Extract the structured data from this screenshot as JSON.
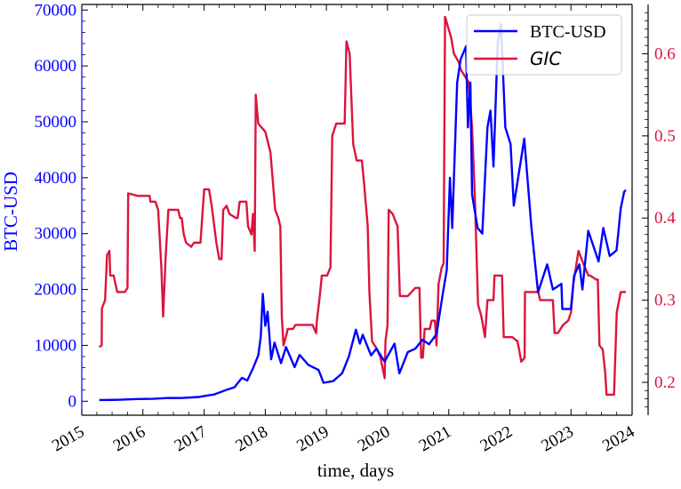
{
  "chart_data": {
    "type": "line",
    "xlabel": "time, days",
    "ylabel_left": "BTC-USD",
    "ylabel_right": "",
    "x_range": [
      "2015-01-01",
      "2024-01-01"
    ],
    "x_ticks": [
      "2015",
      "2016",
      "2017",
      "2018",
      "2019",
      "2020",
      "2021",
      "2022",
      "2023",
      "2024"
    ],
    "ylim_left": [
      -2500,
      71000
    ],
    "yticks_left": [
      "0",
      "10000",
      "20000",
      "30000",
      "40000",
      "50000",
      "60000",
      "70000"
    ],
    "ylim_right": [
      0.16,
      0.66
    ],
    "yticks_right": [
      "0.2",
      "0.3",
      "0.4",
      "0.5",
      "0.6"
    ],
    "legend_position": "upper-right",
    "grid": false,
    "colors": {
      "btc": "#0000ff",
      "gic": "#dc143c",
      "axis": "#000000"
    },
    "series": [
      {
        "name": "BTC-USD",
        "axis": "left",
        "points": [
          [
            "2015-04-15",
            220
          ],
          [
            "2015-08-01",
            260
          ],
          [
            "2015-12-01",
            390
          ],
          [
            "2016-03-01",
            420
          ],
          [
            "2016-06-01",
            590
          ],
          [
            "2016-08-15",
            570
          ],
          [
            "2016-12-01",
            760
          ],
          [
            "2017-01-05",
            950
          ],
          [
            "2017-03-01",
            1200
          ],
          [
            "2017-05-20",
            2100
          ],
          [
            "2017-07-01",
            2500
          ],
          [
            "2017-08-15",
            4200
          ],
          [
            "2017-09-15",
            3700
          ],
          [
            "2017-10-20",
            5900
          ],
          [
            "2017-11-20",
            8200
          ],
          [
            "2017-12-05",
            11500
          ],
          [
            "2017-12-17",
            19200
          ],
          [
            "2018-01-01",
            13500
          ],
          [
            "2018-01-15",
            16000
          ],
          [
            "2018-02-05",
            7500
          ],
          [
            "2018-02-25",
            10500
          ],
          [
            "2018-04-05",
            6800
          ],
          [
            "2018-05-05",
            9700
          ],
          [
            "2018-06-25",
            6100
          ],
          [
            "2018-07-25",
            8300
          ],
          [
            "2018-09-15",
            6500
          ],
          [
            "2018-11-15",
            5600
          ],
          [
            "2018-12-15",
            3300
          ],
          [
            "2019-02-10",
            3600
          ],
          [
            "2019-04-05",
            5000
          ],
          [
            "2019-05-15",
            8000
          ],
          [
            "2019-06-26",
            12800
          ],
          [
            "2019-07-20",
            10300
          ],
          [
            "2019-08-06",
            11900
          ],
          [
            "2019-09-25",
            8200
          ],
          [
            "2019-10-26",
            9400
          ],
          [
            "2019-12-15",
            7100
          ],
          [
            "2020-01-15",
            8800
          ],
          [
            "2020-02-12",
            10300
          ],
          [
            "2020-03-12",
            5000
          ],
          [
            "2020-05-01",
            8800
          ],
          [
            "2020-06-15",
            9400
          ],
          [
            "2020-07-28",
            11000
          ],
          [
            "2020-09-05",
            10200
          ],
          [
            "2020-10-20",
            12000
          ],
          [
            "2020-11-25",
            19000
          ],
          [
            "2020-12-20",
            23500
          ],
          [
            "2021-01-08",
            40000
          ],
          [
            "2021-01-22",
            31000
          ],
          [
            "2021-02-20",
            57000
          ],
          [
            "2021-03-13",
            61200
          ],
          [
            "2021-04-14",
            63500
          ],
          [
            "2021-04-25",
            49000
          ],
          [
            "2021-05-10",
            57000
          ],
          [
            "2021-05-20",
            37000
          ],
          [
            "2021-06-22",
            31000
          ],
          [
            "2021-07-20",
            30000
          ],
          [
            "2021-08-20",
            49000
          ],
          [
            "2021-09-07",
            52000
          ],
          [
            "2021-09-25",
            42000
          ],
          [
            "2021-10-20",
            64000
          ],
          [
            "2021-11-09",
            67500
          ],
          [
            "2021-12-05",
            49000
          ],
          [
            "2022-01-05",
            46000
          ],
          [
            "2022-01-24",
            35000
          ],
          [
            "2022-03-28",
            47000
          ],
          [
            "2022-05-10",
            31000
          ],
          [
            "2022-06-18",
            19500
          ],
          [
            "2022-08-12",
            24500
          ],
          [
            "2022-09-15",
            20000
          ],
          [
            "2022-11-05",
            21000
          ],
          [
            "2022-11-10",
            16500
          ],
          [
            "2022-12-31",
            16500
          ],
          [
            "2023-01-20",
            22500
          ],
          [
            "2023-02-20",
            24500
          ],
          [
            "2023-03-10",
            20000
          ],
          [
            "2023-04-14",
            30500
          ],
          [
            "2023-06-15",
            25000
          ],
          [
            "2023-07-13",
            31000
          ],
          [
            "2023-08-20",
            26000
          ],
          [
            "2023-09-30",
            27000
          ],
          [
            "2023-10-25",
            34500
          ],
          [
            "2023-11-15",
            37500
          ],
          [
            "2023-11-25",
            37800
          ]
        ]
      },
      {
        "name": "GIC",
        "axis": "right",
        "points": [
          [
            "2015-04-15",
            0.243
          ],
          [
            "2015-04-30",
            0.245
          ],
          [
            "2015-05-01",
            0.29
          ],
          [
            "2015-05-20",
            0.3
          ],
          [
            "2015-06-01",
            0.355
          ],
          [
            "2015-06-15",
            0.36
          ],
          [
            "2015-06-20",
            0.33
          ],
          [
            "2015-07-10",
            0.33
          ],
          [
            "2015-08-01",
            0.31
          ],
          [
            "2015-09-15",
            0.31
          ],
          [
            "2015-10-01",
            0.315
          ],
          [
            "2015-10-05",
            0.43
          ],
          [
            "2015-12-01",
            0.427
          ],
          [
            "2016-02-10",
            0.427
          ],
          [
            "2016-02-15",
            0.42
          ],
          [
            "2016-03-15",
            0.42
          ],
          [
            "2016-04-01",
            0.41
          ],
          [
            "2016-04-20",
            0.34
          ],
          [
            "2016-05-01",
            0.28
          ],
          [
            "2016-05-15",
            0.35
          ],
          [
            "2016-06-01",
            0.41
          ],
          [
            "2016-07-30",
            0.41
          ],
          [
            "2016-08-10",
            0.4
          ],
          [
            "2016-08-20",
            0.4
          ],
          [
            "2016-09-01",
            0.38
          ],
          [
            "2016-09-15",
            0.37
          ],
          [
            "2016-10-15",
            0.365
          ],
          [
            "2016-11-01",
            0.37
          ],
          [
            "2016-12-10",
            0.37
          ],
          [
            "2016-12-20",
            0.4
          ],
          [
            "2017-01-01",
            0.435
          ],
          [
            "2017-01-30",
            0.435
          ],
          [
            "2017-02-15",
            0.415
          ],
          [
            "2017-03-15",
            0.37
          ],
          [
            "2017-04-01",
            0.35
          ],
          [
            "2017-04-15",
            0.35
          ],
          [
            "2017-04-25",
            0.41
          ],
          [
            "2017-05-15",
            0.415
          ],
          [
            "2017-06-01",
            0.405
          ],
          [
            "2017-07-10",
            0.4
          ],
          [
            "2017-07-20",
            0.4
          ],
          [
            "2017-08-01",
            0.42
          ],
          [
            "2017-09-10",
            0.42
          ],
          [
            "2017-09-20",
            0.39
          ],
          [
            "2017-10-10",
            0.38
          ],
          [
            "2017-10-20",
            0.405
          ],
          [
            "2017-10-30",
            0.36
          ],
          [
            "2017-11-05",
            0.55
          ],
          [
            "2017-11-20",
            0.515
          ],
          [
            "2018-01-01",
            0.505
          ],
          [
            "2018-02-01",
            0.48
          ],
          [
            "2018-03-01",
            0.41
          ],
          [
            "2018-03-20",
            0.4
          ],
          [
            "2018-04-01",
            0.39
          ],
          [
            "2018-04-10",
            0.28
          ],
          [
            "2018-04-20",
            0.245
          ],
          [
            "2018-05-10",
            0.26
          ],
          [
            "2018-05-15",
            0.265
          ],
          [
            "2018-06-15",
            0.265
          ],
          [
            "2018-07-01",
            0.27
          ],
          [
            "2018-07-15",
            0.27
          ],
          [
            "2018-10-10",
            0.27
          ],
          [
            "2018-11-01",
            0.26
          ],
          [
            "2018-11-05",
            0.275
          ],
          [
            "2018-11-20",
            0.3
          ],
          [
            "2018-12-05",
            0.33
          ],
          [
            "2019-01-05",
            0.33
          ],
          [
            "2019-01-25",
            0.34
          ],
          [
            "2019-02-05",
            0.5
          ],
          [
            "2019-03-01",
            0.515
          ],
          [
            "2019-04-20",
            0.515
          ],
          [
            "2019-05-01",
            0.615
          ],
          [
            "2019-05-20",
            0.6
          ],
          [
            "2019-06-10",
            0.49
          ],
          [
            "2019-07-01",
            0.47
          ],
          [
            "2019-08-01",
            0.47
          ],
          [
            "2019-08-15",
            0.44
          ],
          [
            "2019-09-05",
            0.39
          ],
          [
            "2019-09-15",
            0.31
          ],
          [
            "2019-10-01",
            0.25
          ],
          [
            "2019-11-01",
            0.24
          ],
          [
            "2019-11-20",
            0.23
          ],
          [
            "2019-12-15",
            0.205
          ],
          [
            "2019-12-20",
            0.25
          ],
          [
            "2020-01-01",
            0.27
          ],
          [
            "2020-01-08",
            0.41
          ],
          [
            "2020-02-01",
            0.405
          ],
          [
            "2020-02-20",
            0.395
          ],
          [
            "2020-03-01",
            0.39
          ],
          [
            "2020-03-15",
            0.305
          ],
          [
            "2020-05-01",
            0.305
          ],
          [
            "2020-06-15",
            0.315
          ],
          [
            "2020-07-10",
            0.315
          ],
          [
            "2020-07-20",
            0.23
          ],
          [
            "2020-07-30",
            0.23
          ],
          [
            "2020-08-10",
            0.265
          ],
          [
            "2020-09-10",
            0.265
          ],
          [
            "2020-09-20",
            0.275
          ],
          [
            "2020-10-10",
            0.275
          ],
          [
            "2020-10-20",
            0.245
          ],
          [
            "2020-11-01",
            0.32
          ],
          [
            "2020-11-20",
            0.34
          ],
          [
            "2020-12-01",
            0.345
          ],
          [
            "2020-12-10",
            0.645
          ],
          [
            "2021-01-15",
            0.62
          ],
          [
            "2021-02-01",
            0.6
          ],
          [
            "2021-03-01",
            0.59
          ],
          [
            "2021-03-15",
            0.58
          ],
          [
            "2021-05-01",
            0.565
          ],
          [
            "2021-05-20",
            0.51
          ],
          [
            "2021-06-05",
            0.43
          ],
          [
            "2021-06-25",
            0.295
          ],
          [
            "2021-07-15",
            0.28
          ],
          [
            "2021-08-05",
            0.255
          ],
          [
            "2021-08-20",
            0.3
          ],
          [
            "2021-09-25",
            0.3
          ],
          [
            "2021-10-01",
            0.33
          ],
          [
            "2021-11-15",
            0.33
          ],
          [
            "2021-11-25",
            0.255
          ],
          [
            "2022-01-15",
            0.255
          ],
          [
            "2022-02-15",
            0.25
          ],
          [
            "2022-02-25",
            0.24
          ],
          [
            "2022-03-10",
            0.225
          ],
          [
            "2022-03-30",
            0.23
          ],
          [
            "2022-04-01",
            0.31
          ],
          [
            "2022-06-15",
            0.31
          ],
          [
            "2022-06-20",
            0.31
          ],
          [
            "2022-07-01",
            0.3
          ],
          [
            "2022-09-15",
            0.3
          ],
          [
            "2022-09-25",
            0.26
          ],
          [
            "2022-10-15",
            0.26
          ],
          [
            "2022-11-15",
            0.27
          ],
          [
            "2022-12-15",
            0.275
          ],
          [
            "2023-01-01",
            0.285
          ],
          [
            "2023-01-15",
            0.32
          ],
          [
            "2023-02-15",
            0.36
          ],
          [
            "2023-03-15",
            0.345
          ],
          [
            "2023-04-15",
            0.33
          ],
          [
            "2023-04-25",
            0.33
          ],
          [
            "2023-06-01",
            0.325
          ],
          [
            "2023-06-10",
            0.325
          ],
          [
            "2023-06-20",
            0.245
          ],
          [
            "2023-07-10",
            0.24
          ],
          [
            "2023-07-25",
            0.21
          ],
          [
            "2023-08-01",
            0.185
          ],
          [
            "2023-09-15",
            0.185
          ],
          [
            "2023-10-01",
            0.285
          ],
          [
            "2023-10-25",
            0.31
          ],
          [
            "2023-11-25",
            0.31
          ]
        ]
      }
    ]
  }
}
